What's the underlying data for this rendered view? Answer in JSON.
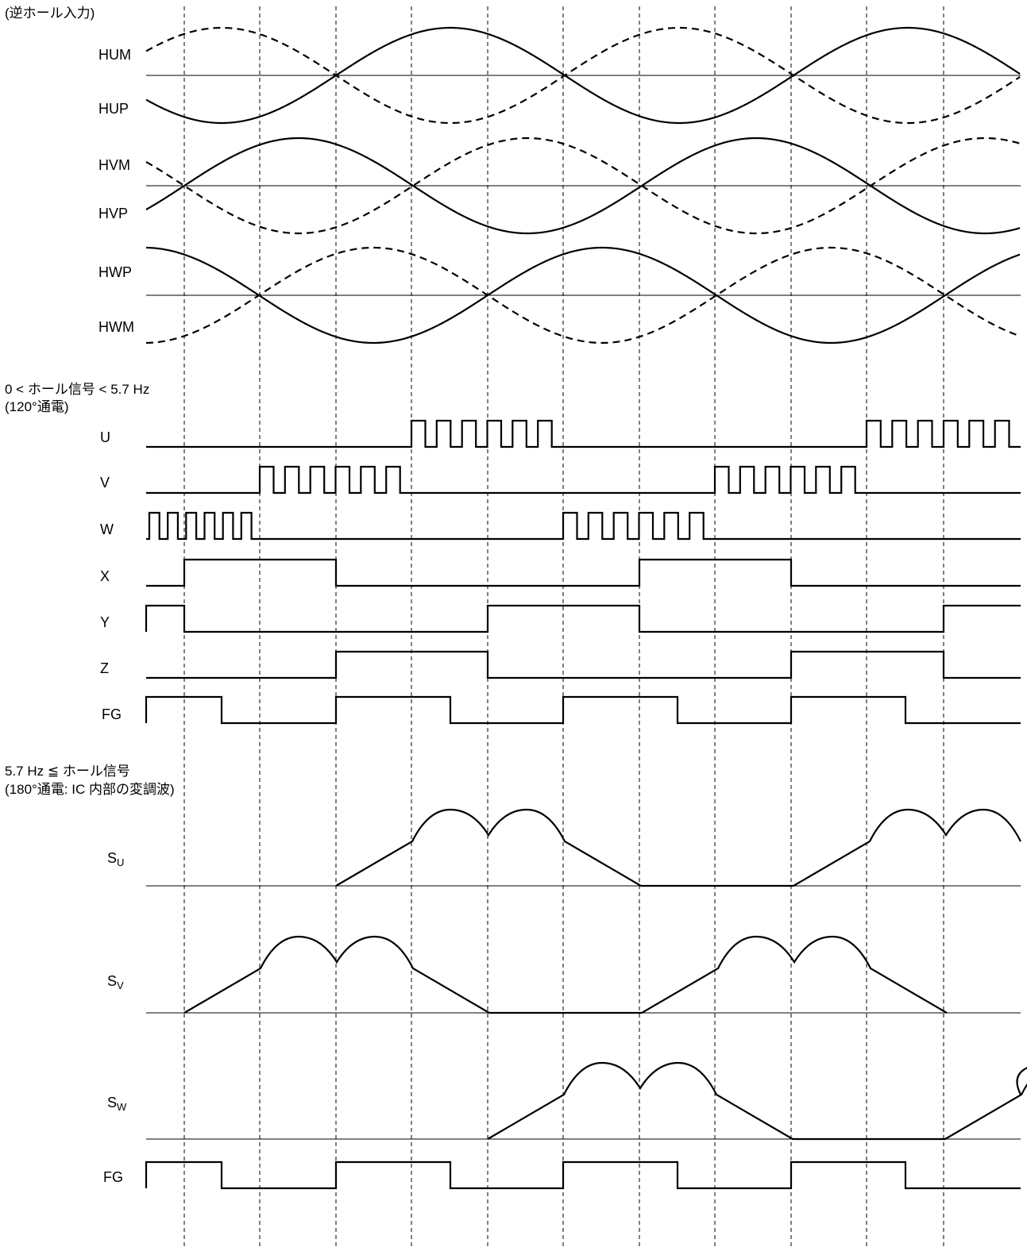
{
  "headings": {
    "hall_input": "(逆ホール入力)",
    "low_speed": "0 <  ホール信号  < 5.7 Hz",
    "low_mode": "(120°通電)",
    "high_speed": "5.7 Hz  ≦  ホール信号",
    "high_mode": "(180°通電: IC 内部の変調波)"
  },
  "hall_signals": {
    "labels": [
      "HUM",
      "HUP",
      "HVM",
      "HVP",
      "HWP",
      "HWM"
    ]
  },
  "drive_signals": {
    "labels": [
      "U",
      "V",
      "W",
      "X",
      "Y",
      "Z",
      "FG"
    ]
  },
  "modulation_signals": {
    "labels": [
      {
        "main": "S",
        "sub": "U"
      },
      {
        "main": "S",
        "sub": "V"
      },
      {
        "main": "S",
        "sub": "W"
      }
    ],
    "fg_label": "FG"
  },
  "colors": {
    "line": "#000000",
    "background": "#ffffff"
  }
}
